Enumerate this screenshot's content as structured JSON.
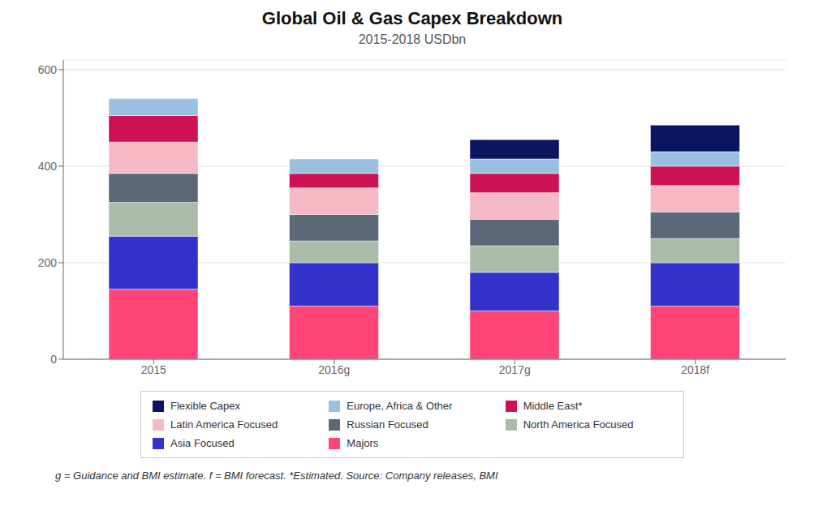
{
  "chart_data": {
    "type": "bar",
    "stacked": true,
    "title": "Global Oil & Gas Capex Breakdown",
    "subtitle": "2015-2018 USDbn",
    "footnote": "g = Guidance and BMI estimate. f = BMI forecast. *Estimated. Source: Company releases, BMI",
    "categories": [
      "2015",
      "2016g",
      "2017g",
      "2018f"
    ],
    "series": [
      {
        "name": "Majors",
        "color": "#FF4477",
        "values": [
          145,
          110,
          100,
          110
        ]
      },
      {
        "name": "Asia Focused",
        "color": "#3333CC",
        "values": [
          110,
          90,
          80,
          90
        ]
      },
      {
        "name": "North America Focused",
        "color": "#AABBAA",
        "values": [
          70,
          45,
          55,
          50
        ]
      },
      {
        "name": "Russian Focused",
        "color": "#5A6878",
        "values": [
          60,
          55,
          55,
          55
        ]
      },
      {
        "name": "Latin America Focused",
        "color": "#F5B8C4",
        "values": [
          65,
          55,
          55,
          55
        ]
      },
      {
        "name": "Middle East*",
        "color": "#CC1155",
        "values": [
          55,
          30,
          40,
          40
        ]
      },
      {
        "name": "Europe, Africa & Other",
        "color": "#99C0E0",
        "values": [
          35,
          30,
          30,
          30
        ]
      },
      {
        "name": "Flexible Capex",
        "color": "#0A1460",
        "values": [
          0,
          0,
          40,
          55
        ]
      }
    ],
    "ylim": [
      0,
      620
    ],
    "yticks": [
      0,
      200,
      400,
      600
    ],
    "grid": true,
    "legend": "bottom"
  }
}
